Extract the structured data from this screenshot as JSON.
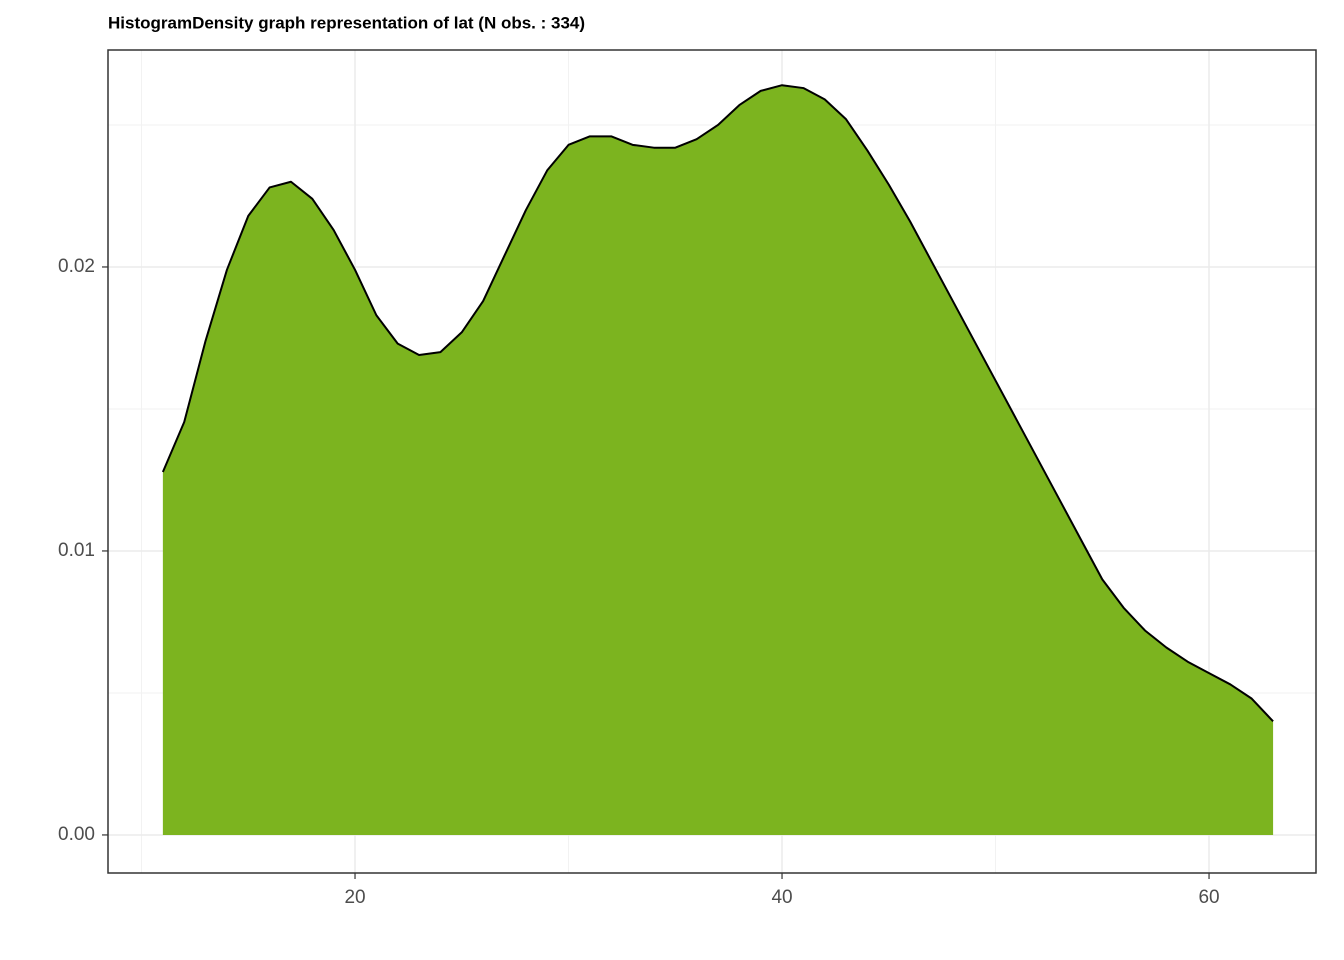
{
  "chart_data": {
    "type": "area",
    "title": "HistogramDensity graph representation of lat (N obs. : 334)",
    "x": [
      11,
      12,
      13,
      14,
      15,
      16,
      17,
      18,
      19,
      20,
      21,
      22,
      23,
      24,
      25,
      26,
      27,
      28,
      29,
      30,
      31,
      32,
      33,
      34,
      35,
      36,
      37,
      38,
      39,
      40,
      41,
      42,
      43,
      44,
      45,
      46,
      47,
      48,
      49,
      50,
      51,
      52,
      53,
      54,
      55,
      56,
      57,
      58,
      59,
      60,
      61,
      62,
      63
    ],
    "values": [
      0.01278,
      0.01454,
      0.0174,
      0.0199,
      0.0218,
      0.0228,
      0.023,
      0.0224,
      0.0213,
      0.0199,
      0.0183,
      0.0173,
      0.0169,
      0.017,
      0.0177,
      0.0188,
      0.0204,
      0.022,
      0.0234,
      0.0243,
      0.0246,
      0.0246,
      0.0243,
      0.0242,
      0.0242,
      0.0245,
      0.025,
      0.0257,
      0.0262,
      0.0264,
      0.0263,
      0.0259,
      0.0252,
      0.0241,
      0.0229,
      0.0216,
      0.0202,
      0.0188,
      0.0174,
      0.016,
      0.0146,
      0.0132,
      0.0118,
      0.0104,
      0.009,
      0.008,
      0.0072,
      0.0066,
      0.0061,
      0.0057,
      0.0053,
      0.0048,
      0.004
    ],
    "color": "#7cb41f",
    "line_color": "#000000",
    "xlim": [
      8.43,
      65.01
    ],
    "ylim": [
      -0.00134,
      0.02764
    ],
    "xticks": [
      20,
      40,
      60
    ],
    "x_minor_ticks": [
      10,
      30,
      50
    ],
    "yticks": [
      {
        "value": 0,
        "label": "0.00"
      },
      {
        "value": 0.01,
        "label": "0.01"
      },
      {
        "value": 0.02,
        "label": "0.02"
      }
    ],
    "y_minor_ticks": [
      0.005,
      0.015,
      0.025
    ],
    "grid": true
  }
}
